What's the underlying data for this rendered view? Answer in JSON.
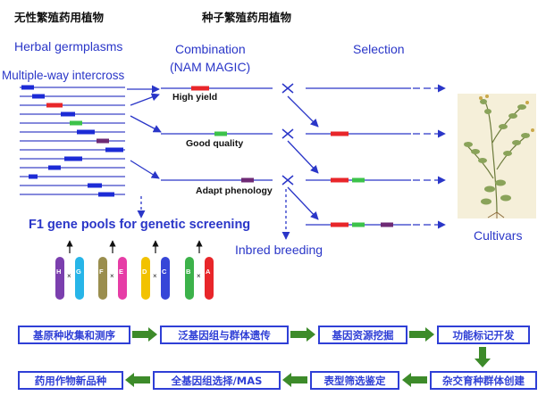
{
  "headers": {
    "asexual": "无性繁殖药用植物",
    "seed": "种子繁殖药用植物"
  },
  "labels": {
    "herbal": "Herbal germplasms",
    "intercross": "Multiple-way intercross",
    "combination": "Combination",
    "nam": "(NAM MAGIC)",
    "selection": "Selection",
    "high_yield": "High yield",
    "good_quality": "Good quality",
    "adapt": "Adapt phenology",
    "f1": "F1 gene pools for genetic screening",
    "inbred": "Inbred breeding",
    "cultivars": "Cultivars"
  },
  "chromosomes": [
    {
      "left": "H",
      "right": "G",
      "left_color": "#7b3fae",
      "right_color": "#27b5e8"
    },
    {
      "left": "F",
      "right": "E",
      "left_color": "#9a8e4e",
      "right_color": "#e63da6"
    },
    {
      "left": "D",
      "right": "C",
      "left_color": "#f2c200",
      "right_color": "#3646d8"
    },
    {
      "left": "B",
      "right": "A",
      "left_color": "#3cb24a",
      "right_color": "#e8262a"
    }
  ],
  "pipeline": {
    "row1": [
      "基原种收集和测序",
      "泛基因组与群体遗传",
      "基因资源挖掘",
      "功能标记开发"
    ],
    "row2": [
      "药用作物新品种",
      "全基因组选择/MAS",
      "表型筛选鉴定",
      "杂交育种群体创建"
    ]
  },
  "colors": {
    "blue": "#2a36c8",
    "red": "#e8262a",
    "green": "#3cc24a",
    "purple": "#6e2a74",
    "arrow_green": "#3d8b2a"
  }
}
